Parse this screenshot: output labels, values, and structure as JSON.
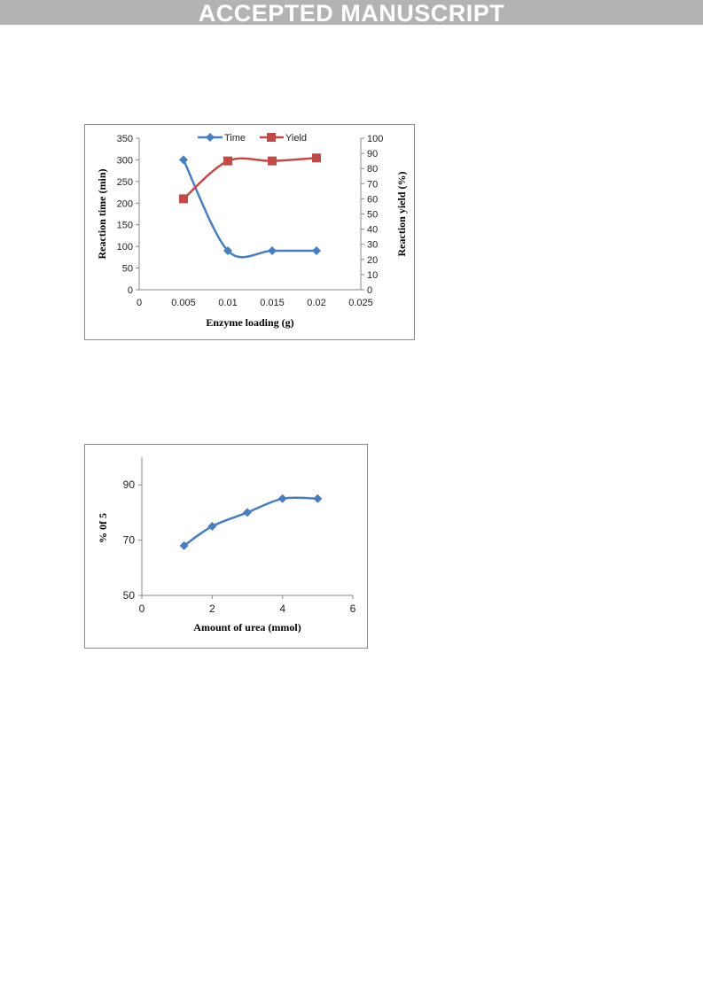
{
  "banner": {
    "text": "ACCEPTED MANUSCRIPT"
  },
  "chart_data": [
    {
      "type": "line",
      "title": "",
      "xlabel": "Enzyme loading (g)",
      "ylabel": "Reaction time (min)",
      "y2label": "Reaction yield (%)",
      "xlim": [
        0,
        0.025
      ],
      "ylim": [
        0,
        350
      ],
      "y2lim": [
        0,
        100
      ],
      "x_ticks": [
        "0",
        "0.005",
        "0.01",
        "0.015",
        "0.02",
        "0.025"
      ],
      "y_ticks": [
        "0",
        "50",
        "100",
        "150",
        "200",
        "250",
        "300",
        "350"
      ],
      "y2_ticks": [
        "0",
        "10",
        "20",
        "30",
        "40",
        "50",
        "60",
        "70",
        "80",
        "90",
        "100"
      ],
      "legend_position": "top",
      "grid": false,
      "series": [
        {
          "name": "Time",
          "axis": "left",
          "color": "#4a7ebb",
          "marker": "diamond",
          "x": [
            0.005,
            0.01,
            0.015,
            0.02
          ],
          "values": [
            300,
            90,
            90,
            90
          ]
        },
        {
          "name": "Yield",
          "axis": "right",
          "color": "#be4b48",
          "marker": "square",
          "x": [
            0.005,
            0.01,
            0.015,
            0.02
          ],
          "values": [
            60,
            85,
            85,
            87
          ]
        }
      ]
    },
    {
      "type": "line",
      "title": "",
      "xlabel": "Amount of urea (mmol)",
      "ylabel": "% 0f 5",
      "xlim": [
        0,
        6
      ],
      "ylim": [
        50,
        100
      ],
      "x_ticks": [
        "0",
        "2",
        "4",
        "6"
      ],
      "y_ticks": [
        "50",
        "70",
        "90"
      ],
      "grid": false,
      "series": [
        {
          "color": "#4a7ebb",
          "marker": "diamond",
          "x": [
            1.2,
            2,
            3,
            4,
            5
          ],
          "values": [
            68,
            75,
            80,
            85,
            85
          ]
        }
      ]
    }
  ]
}
